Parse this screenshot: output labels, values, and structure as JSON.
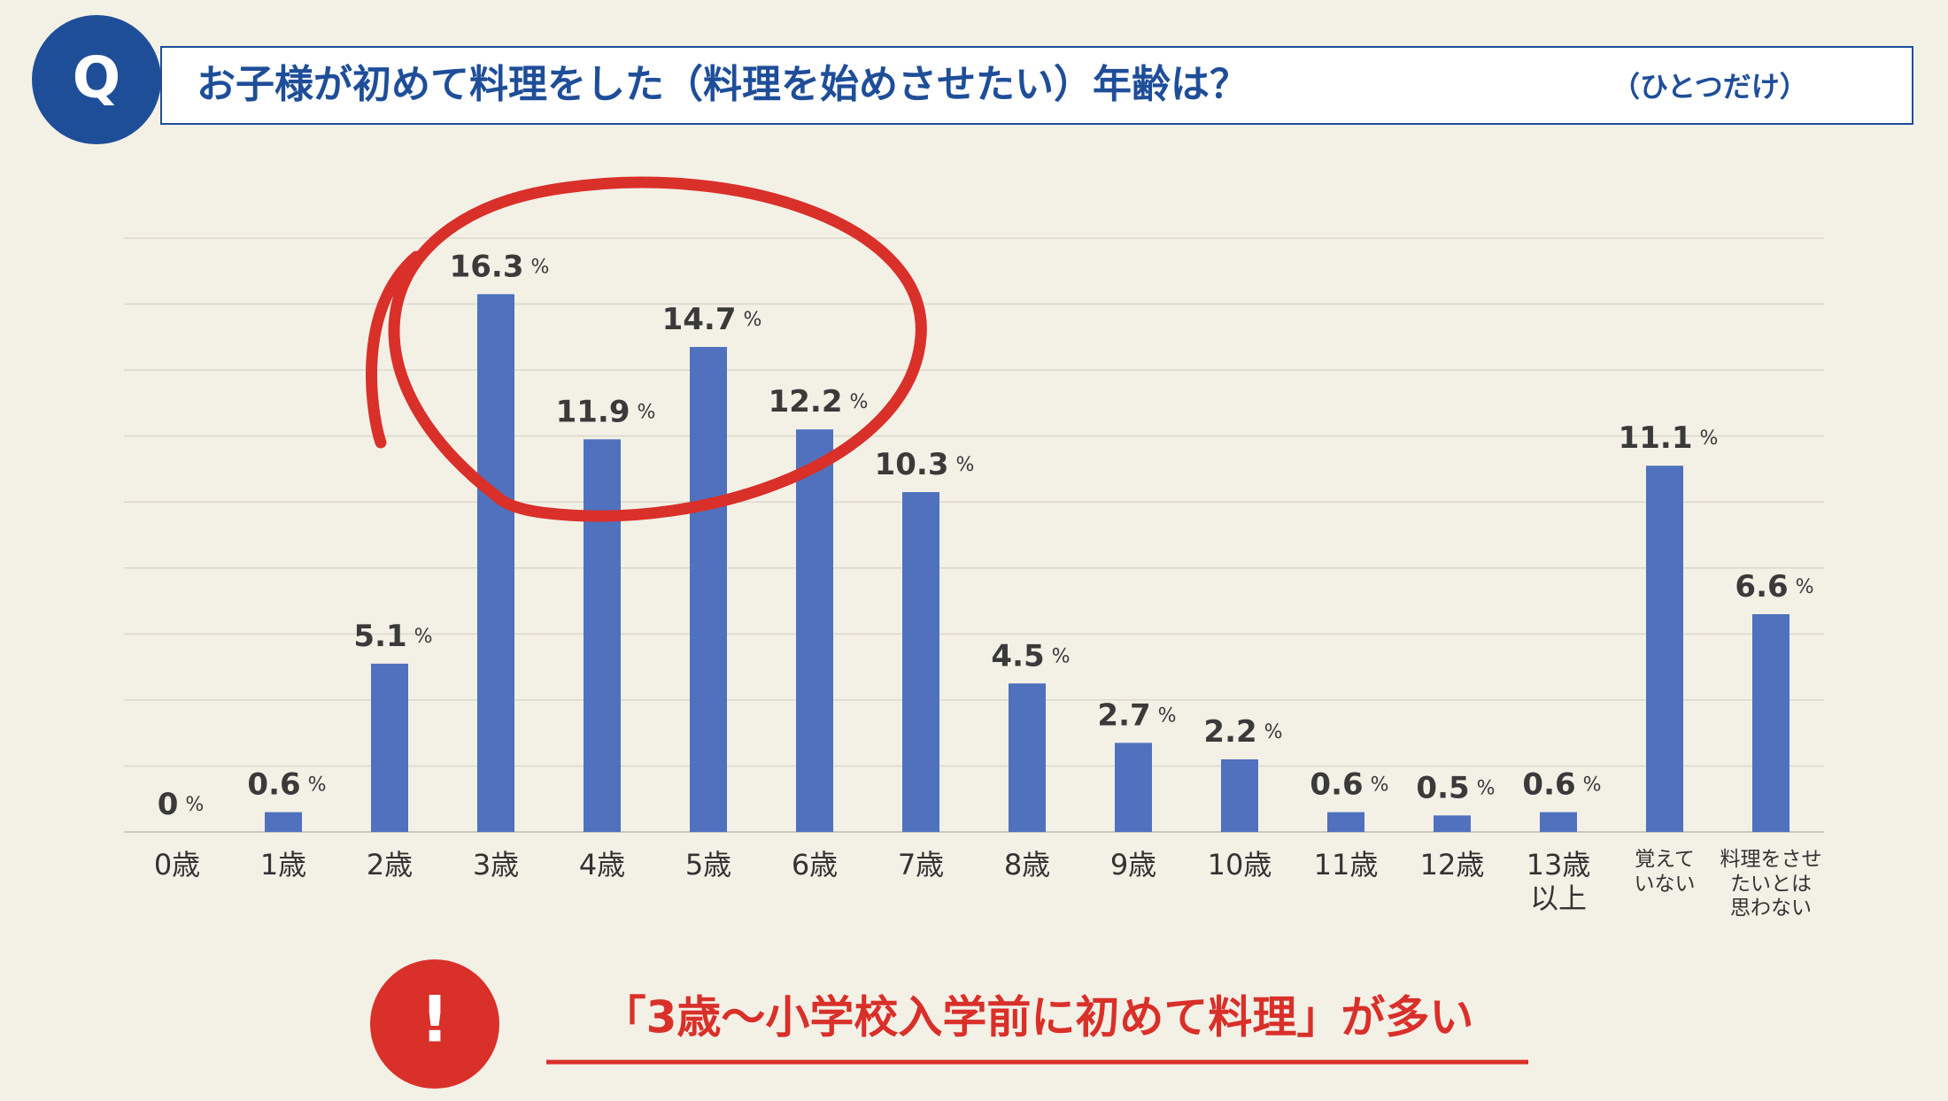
{
  "chart_data": {
    "type": "bar",
    "title": "お子様が初めて料理をした（料理を始めさせたい）年齢は？",
    "subtitle": "（ひとつだけ）",
    "badge": "Q",
    "categories": [
      "0歳",
      "1歳",
      "2歳",
      "3歳",
      "4歳",
      "5歳",
      "6歳",
      "7歳",
      "8歳",
      "9歳",
      "10歳",
      "11歳",
      "12歳",
      "13歳\n以上",
      "覚えて\nいない",
      "料理をさせ\nたいとは\n思わない"
    ],
    "values": [
      0,
      0.6,
      5.1,
      16.3,
      11.9,
      14.7,
      12.2,
      10.3,
      4.5,
      2.7,
      2.2,
      0.6,
      0.5,
      0.6,
      11.1,
      6.6
    ],
    "value_suffix": "%",
    "color": "#4f71be",
    "ylim": [
      0,
      18
    ],
    "yticks": [
      0,
      2,
      4,
      6,
      8,
      10,
      12,
      14,
      16,
      18
    ],
    "grid": true,
    "note_badge": "!",
    "note": "「3歳～小学校入学前に初めて料理」が多い"
  }
}
